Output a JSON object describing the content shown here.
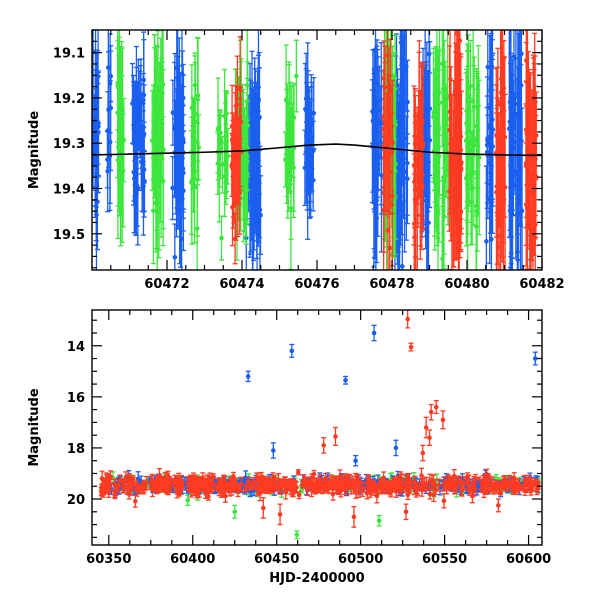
{
  "colors": {
    "blue": "#1a5ff0",
    "green": "#3de63d",
    "red": "#ff3b22",
    "axis": "#000000",
    "model": "#000000"
  },
  "chart_data": [
    {
      "type": "scatter",
      "title": "",
      "xlabel": "",
      "ylabel": "Magnitude",
      "xlim": [
        60470.0,
        60482.0
      ],
      "ylim": [
        19.58,
        19.05
      ],
      "y_inverted": true,
      "xticks": [
        60472,
        60474,
        60476,
        60478,
        60480,
        60482
      ],
      "xtick_labels": [
        "60472",
        "60474",
        "60476",
        "60478",
        "60480",
        "60482"
      ],
      "yticks": [
        19.1,
        19.2,
        19.3,
        19.4,
        19.5
      ],
      "ytick_labels": [
        "19.1",
        "19.2",
        "19.3",
        "19.4",
        "19.5"
      ],
      "grid": false,
      "legend": "none",
      "series": [
        {
          "color": "blue",
          "clusters": [
            {
              "x": 60470.1,
              "w": 0.15,
              "n": 22,
              "mean": 19.32,
              "sd": 0.08,
              "err": 0.14
            },
            {
              "x": 60470.45,
              "w": 0.1,
              "n": 10,
              "mean": 19.28,
              "sd": 0.07,
              "err": 0.12
            },
            {
              "x": 60471.25,
              "w": 0.35,
              "n": 40,
              "mean": 19.3,
              "sd": 0.07,
              "err": 0.12
            },
            {
              "x": 60472.3,
              "w": 0.3,
              "n": 40,
              "mean": 19.32,
              "sd": 0.08,
              "err": 0.15
            },
            {
              "x": 60474.3,
              "w": 0.4,
              "n": 45,
              "mean": 19.33,
              "sd": 0.08,
              "err": 0.14
            },
            {
              "x": 60475.8,
              "w": 0.25,
              "n": 30,
              "mean": 19.3,
              "sd": 0.06,
              "err": 0.1
            },
            {
              "x": 60477.6,
              "w": 0.25,
              "n": 35,
              "mean": 19.3,
              "sd": 0.08,
              "err": 0.15
            },
            {
              "x": 60478.25,
              "w": 0.35,
              "n": 45,
              "mean": 19.32,
              "sd": 0.09,
              "err": 0.18
            },
            {
              "x": 60478.9,
              "w": 0.25,
              "n": 30,
              "mean": 19.3,
              "sd": 0.08,
              "err": 0.14
            },
            {
              "x": 60480.6,
              "w": 0.2,
              "n": 25,
              "mean": 19.3,
              "sd": 0.09,
              "err": 0.16
            },
            {
              "x": 60481.3,
              "w": 0.35,
              "n": 40,
              "mean": 19.32,
              "sd": 0.1,
              "err": 0.2
            }
          ]
        },
        {
          "color": "green",
          "clusters": [
            {
              "x": 60470.75,
              "w": 0.2,
              "n": 16,
              "mean": 19.28,
              "sd": 0.08,
              "err": 0.16
            },
            {
              "x": 60471.75,
              "w": 0.3,
              "n": 35,
              "mean": 19.3,
              "sd": 0.08,
              "err": 0.15
            },
            {
              "x": 60472.75,
              "w": 0.2,
              "n": 18,
              "mean": 19.3,
              "sd": 0.07,
              "err": 0.14
            },
            {
              "x": 60473.5,
              "w": 0.3,
              "n": 20,
              "mean": 19.3,
              "sd": 0.06,
              "err": 0.1
            },
            {
              "x": 60474.0,
              "w": 0.35,
              "n": 40,
              "mean": 19.3,
              "sd": 0.07,
              "err": 0.12
            },
            {
              "x": 60475.3,
              "w": 0.3,
              "n": 22,
              "mean": 19.3,
              "sd": 0.07,
              "err": 0.12
            },
            {
              "x": 60477.95,
              "w": 0.3,
              "n": 35,
              "mean": 19.3,
              "sd": 0.09,
              "err": 0.18
            },
            {
              "x": 60479.3,
              "w": 0.4,
              "n": 40,
              "mean": 19.3,
              "sd": 0.09,
              "err": 0.17
            },
            {
              "x": 60480.15,
              "w": 0.35,
              "n": 35,
              "mean": 19.32,
              "sd": 0.08,
              "err": 0.15
            }
          ]
        },
        {
          "color": "red",
          "clusters": [
            {
              "x": 60473.85,
              "w": 0.25,
              "n": 30,
              "mean": 19.33,
              "sd": 0.06,
              "err": 0.1
            },
            {
              "x": 60477.9,
              "w": 0.25,
              "n": 30,
              "mean": 19.32,
              "sd": 0.08,
              "err": 0.14
            },
            {
              "x": 60478.7,
              "w": 0.25,
              "n": 30,
              "mean": 19.33,
              "sd": 0.09,
              "err": 0.16
            },
            {
              "x": 60479.7,
              "w": 0.35,
              "n": 40,
              "mean": 19.32,
              "sd": 0.09,
              "err": 0.18
            },
            {
              "x": 60480.9,
              "w": 0.25,
              "n": 30,
              "mean": 19.32,
              "sd": 0.1,
              "err": 0.2
            },
            {
              "x": 60481.7,
              "w": 0.3,
              "n": 35,
              "mean": 19.35,
              "sd": 0.1,
              "err": 0.18
            }
          ]
        }
      ],
      "model_curve": {
        "x": [
          60470.0,
          60471.0,
          60472.0,
          60473.0,
          60474.0,
          60475.0,
          60475.8,
          60476.5,
          60477.0,
          60478.0,
          60479.0,
          60480.0,
          60481.0,
          60482.0
        ],
        "y": [
          19.326,
          19.324,
          19.322,
          19.32,
          19.317,
          19.31,
          19.304,
          19.302,
          19.304,
          19.312,
          19.32,
          19.324,
          19.326,
          19.327
        ]
      }
    },
    {
      "type": "scatter",
      "title": "",
      "xlabel": "HJD-2400000",
      "ylabel": "Magnitude",
      "xlim": [
        60340,
        60608
      ],
      "ylim": [
        21.8,
        12.6
      ],
      "y_inverted": true,
      "xticks": [
        60350,
        60400,
        60450,
        60500,
        60550,
        60600
      ],
      "xtick_labels": [
        "60350",
        "60400",
        "60450",
        "60500",
        "60550",
        "60600"
      ],
      "yticks": [
        14,
        16,
        18,
        20
      ],
      "ytick_labels": [
        "14",
        "16",
        "18",
        "20"
      ],
      "grid": false,
      "legend": "none",
      "baseline": {
        "x_range": [
          60345,
          60606
        ],
        "mean": 19.45,
        "sd": 0.13,
        "err": 0.22
      },
      "outliers": [
        {
          "x": 60433,
          "y": 15.2,
          "err": 0.2,
          "color": "blue"
        },
        {
          "x": 60459,
          "y": 14.2,
          "err": 0.25,
          "color": "blue"
        },
        {
          "x": 60491,
          "y": 15.35,
          "err": 0.15,
          "color": "blue"
        },
        {
          "x": 60508,
          "y": 13.5,
          "err": 0.3,
          "color": "blue"
        },
        {
          "x": 60604,
          "y": 14.5,
          "err": 0.25,
          "color": "blue"
        },
        {
          "x": 60528,
          "y": 12.95,
          "err": 0.35,
          "color": "red"
        },
        {
          "x": 60530,
          "y": 14.05,
          "err": 0.15,
          "color": "red"
        },
        {
          "x": 60542,
          "y": 16.6,
          "err": 0.3,
          "color": "red"
        },
        {
          "x": 60545,
          "y": 16.4,
          "err": 0.25,
          "color": "red"
        },
        {
          "x": 60539,
          "y": 17.2,
          "err": 0.4,
          "color": "red"
        },
        {
          "x": 60549,
          "y": 16.9,
          "err": 0.35,
          "color": "red"
        },
        {
          "x": 60541,
          "y": 17.6,
          "err": 0.3,
          "color": "red"
        },
        {
          "x": 60485,
          "y": 17.55,
          "err": 0.35,
          "color": "red"
        },
        {
          "x": 60478,
          "y": 17.9,
          "err": 0.3,
          "color": "red"
        },
        {
          "x": 60537,
          "y": 18.2,
          "err": 0.3,
          "color": "red"
        },
        {
          "x": 60448,
          "y": 18.1,
          "err": 0.3,
          "color": "blue"
        },
        {
          "x": 60521,
          "y": 18.0,
          "err": 0.3,
          "color": "blue"
        },
        {
          "x": 60497,
          "y": 18.5,
          "err": 0.2,
          "color": "blue"
        },
        {
          "x": 60462,
          "y": 21.4,
          "err": 0.15,
          "color": "green"
        },
        {
          "x": 60425,
          "y": 20.5,
          "err": 0.25,
          "color": "green"
        },
        {
          "x": 60511,
          "y": 20.85,
          "err": 0.2,
          "color": "green"
        },
        {
          "x": 60397,
          "y": 20.05,
          "err": 0.2,
          "color": "green"
        },
        {
          "x": 60442,
          "y": 20.35,
          "err": 0.4,
          "color": "red"
        },
        {
          "x": 60452,
          "y": 20.6,
          "err": 0.4,
          "color": "red"
        },
        {
          "x": 60496,
          "y": 20.7,
          "err": 0.4,
          "color": "red"
        },
        {
          "x": 60527,
          "y": 20.5,
          "err": 0.3,
          "color": "red"
        },
        {
          "x": 60582,
          "y": 20.25,
          "err": 0.25,
          "color": "red"
        },
        {
          "x": 60570,
          "y": 19.5,
          "err": 0.2,
          "color": "blue"
        }
      ]
    }
  ]
}
